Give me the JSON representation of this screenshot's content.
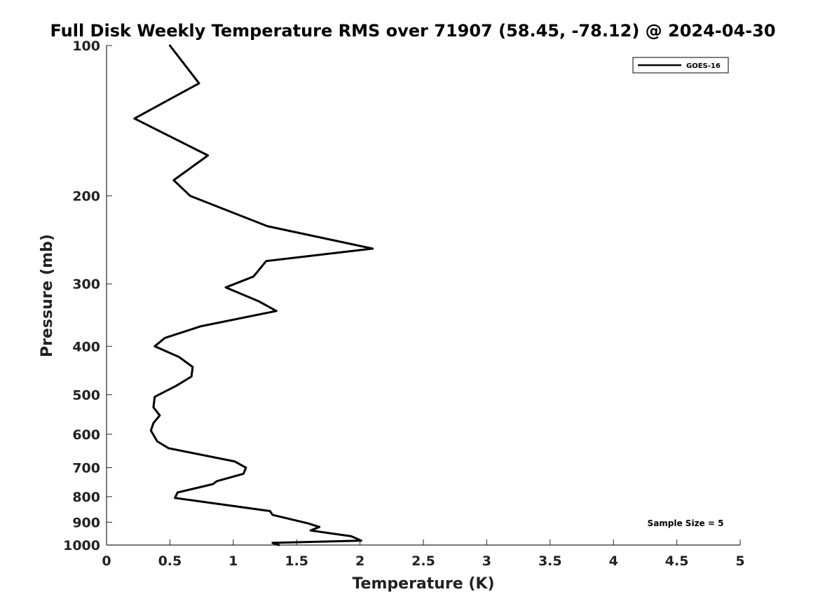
{
  "chart_data": {
    "type": "line",
    "title": "Full Disk Weekly Temperature RMS over 71907 (58.45, -78.12) @ 2024-04-30",
    "xlabel": "Temperature (K)",
    "ylabel": "Pressure (mb)",
    "xlim": [
      0,
      5
    ],
    "ylim": [
      1000,
      100
    ],
    "yscale": "log",
    "x_ticks": [
      0,
      0.5,
      1,
      1.5,
      2,
      2.5,
      3,
      3.5,
      4,
      4.5,
      5
    ],
    "x_tick_labels": [
      "0",
      "0.5",
      "1",
      "1.5",
      "2",
      "2.5",
      "3",
      "3.5",
      "4",
      "4.5",
      "5"
    ],
    "y_ticks": [
      100,
      200,
      300,
      400,
      500,
      600,
      700,
      800,
      900,
      1000
    ],
    "y_tick_labels": [
      "100",
      "200",
      "300",
      "400",
      "500",
      "600",
      "700",
      "800",
      "900",
      "1000"
    ],
    "grid": false,
    "legend_position": "top-right",
    "series": [
      {
        "name": "GOES-16",
        "color": "#000000",
        "x": [
          0.5,
          0.73,
          0.22,
          0.8,
          0.53,
          0.66,
          1.27,
          2.1,
          1.26,
          1.16,
          0.94,
          1.2,
          1.34,
          0.74,
          0.46,
          0.38,
          0.57,
          0.68,
          0.67,
          0.55,
          0.38,
          0.37,
          0.42,
          0.37,
          0.35,
          0.4,
          0.49,
          1.01,
          1.1,
          1.08,
          0.87,
          0.84,
          0.56,
          0.54,
          1.29,
          1.31,
          1.59,
          1.68,
          1.61,
          1.93,
          2.01,
          1.31,
          1.36
        ],
        "y": [
          100,
          119,
          140,
          166,
          186,
          200,
          230,
          255,
          270,
          290,
          305,
          325,
          340,
          365,
          385,
          400,
          420,
          440,
          460,
          480,
          505,
          530,
          550,
          570,
          590,
          620,
          640,
          680,
          700,
          720,
          745,
          755,
          785,
          805,
          855,
          870,
          905,
          920,
          935,
          960,
          980,
          990,
          1000
        ]
      }
    ],
    "annotations": [
      "Sample Size = 5"
    ]
  }
}
